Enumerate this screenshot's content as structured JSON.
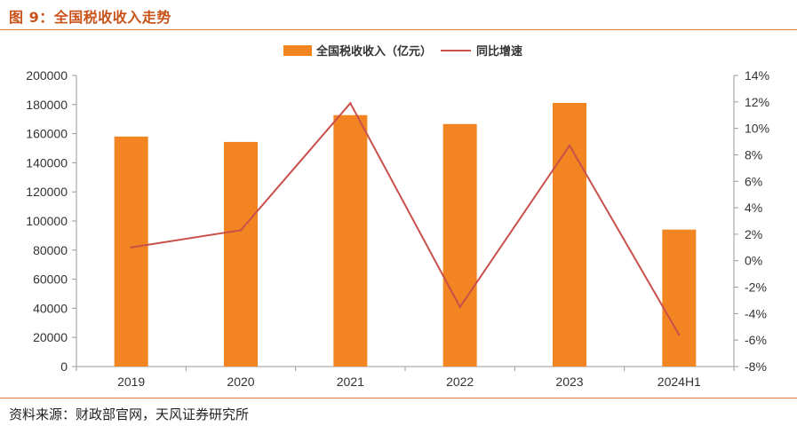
{
  "header": {
    "title": "图 9：全国税收收入走势"
  },
  "footer": {
    "source": "资料来源：财政部官网，天风证券研究所"
  },
  "colors": {
    "bar": "#f28521",
    "line": "#c9504b",
    "accent": "#e07b39"
  },
  "chart_data": {
    "type": "bar",
    "categories": [
      "2019",
      "2020",
      "2021",
      "2022",
      "2023",
      "2024H1"
    ],
    "series": [
      {
        "name": "全国税收收入（亿元）",
        "type": "bar",
        "axis": "left",
        "values": [
          157992,
          154312,
          172731,
          166614,
          181129,
          94080
        ]
      },
      {
        "name": "同比增速",
        "type": "line",
        "axis": "right",
        "values": [
          1.0,
          2.3,
          11.9,
          -3.5,
          8.7,
          -5.6
        ]
      }
    ],
    "y_left": {
      "lim": [
        0,
        200000
      ],
      "ticks": [
        "0",
        "20000",
        "40000",
        "60000",
        "80000",
        "100000",
        "120000",
        "140000",
        "160000",
        "180000",
        "200000"
      ]
    },
    "y_right": {
      "lim": [
        -8,
        14
      ],
      "ticks": [
        "-8%",
        "-6%",
        "-4%",
        "-2%",
        "0%",
        "2%",
        "4%",
        "6%",
        "8%",
        "10%",
        "12%",
        "14%"
      ]
    },
    "legend": "top-center",
    "grid": false
  }
}
